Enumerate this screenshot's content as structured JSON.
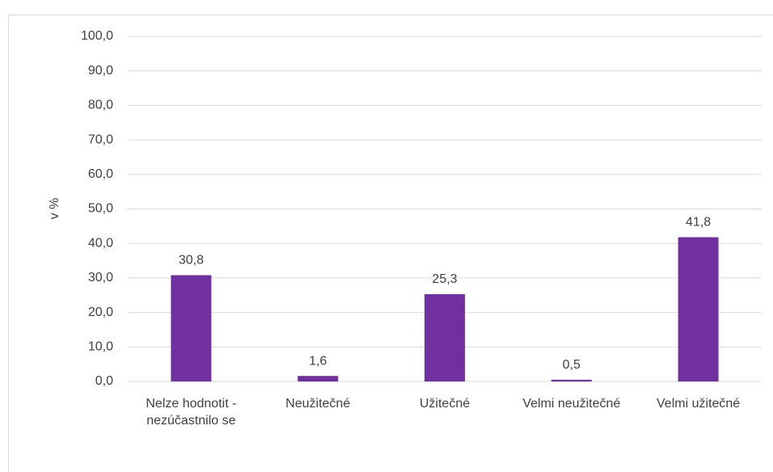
{
  "chart_data": {
    "type": "bar",
    "y_axis_label": "v %",
    "categories": [
      "Nelze hodnotit - nezúčastnilo se",
      "Neužitečné",
      "Užitečné",
      "Velmi neužitečné",
      "Velmi užitečné"
    ],
    "values": [
      30.8,
      1.6,
      25.3,
      0.5,
      41.8
    ],
    "value_labels": [
      "30,8",
      "1,6",
      "25,3",
      "0,5",
      "41,8"
    ],
    "color": "#7030a0",
    "ylim": [
      0,
      100
    ],
    "yticks": [
      {
        "value": 0,
        "label": "0,0"
      },
      {
        "value": 10,
        "label": "10,0"
      },
      {
        "value": 20,
        "label": "20,0"
      },
      {
        "value": 30,
        "label": "30,0"
      },
      {
        "value": 40,
        "label": "40,0"
      },
      {
        "value": 50,
        "label": "50,0"
      },
      {
        "value": 60,
        "label": "60,0"
      },
      {
        "value": 70,
        "label": "70,0"
      },
      {
        "value": 80,
        "label": "80,0"
      },
      {
        "value": 90,
        "label": "90,0"
      },
      {
        "value": 100,
        "label": "100,0"
      }
    ],
    "grid": true
  }
}
